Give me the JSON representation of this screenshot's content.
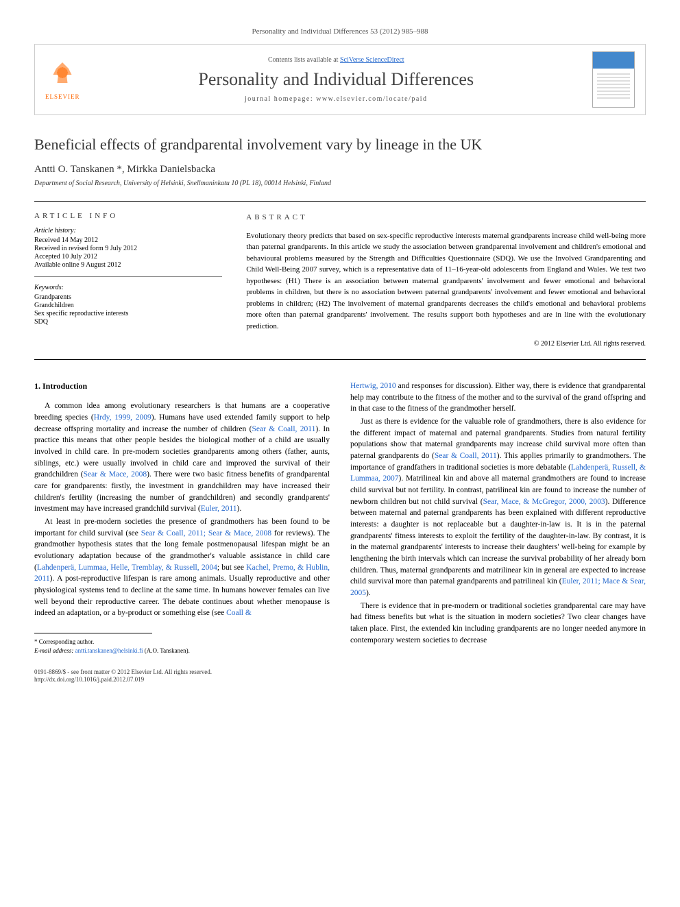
{
  "journal_ref": "Personality and Individual Differences 53 (2012) 985–988",
  "header": {
    "contents_prefix": "Contents lists available at ",
    "contents_link": "SciVerse ScienceDirect",
    "journal_title": "Personality and Individual Differences",
    "homepage_prefix": "journal homepage: ",
    "homepage_url": "www.elsevier.com/locate/paid",
    "publisher_label": "ELSEVIER"
  },
  "article": {
    "title": "Beneficial effects of grandparental involvement vary by lineage in the UK",
    "authors": "Antti O. Tanskanen *, Mirkka Danielsbacka",
    "affiliation": "Department of Social Research, University of Helsinki, Snellmaninkatu 10 (PL 18), 00014 Helsinki, Finland"
  },
  "info": {
    "heading": "ARTICLE INFO",
    "history_label": "Article history:",
    "received": "Received 14 May 2012",
    "revised": "Received in revised form 9 July 2012",
    "accepted": "Accepted 10 July 2012",
    "online": "Available online 9 August 2012",
    "keywords_label": "Keywords:",
    "kw1": "Grandparents",
    "kw2": "Grandchildren",
    "kw3": "Sex specific reproductive interests",
    "kw4": "SDQ"
  },
  "abstract": {
    "heading": "ABSTRACT",
    "text": "Evolutionary theory predicts that based on sex-specific reproductive interests maternal grandparents increase child well-being more than paternal grandparents. In this article we study the association between grandparental involvement and children's emotional and behavioural problems measured by the Strength and Difficulties Questionnaire (SDQ). We use the Involved Grandparenting and Child Well-Being 2007 survey, which is a representative data of 11–16-year-old adolescents from England and Wales. We test two hypotheses: (H1) There is an association between maternal grandparents' involvement and fewer emotional and behavioral problems in children, but there is no association between paternal grandparents' involvement and fewer emotional and behavioral problems in children; (H2) The involvement of maternal grandparents decreases the child's emotional and behavioral problems more often than paternal grandparents' involvement. The results support both hypotheses and are in line with the evolutionary prediction.",
    "copyright": "© 2012 Elsevier Ltd. All rights reserved."
  },
  "body": {
    "section1_heading": "1. Introduction",
    "p1a": "A common idea among evolutionary researchers is that humans are a cooperative breeding species (",
    "p1_cite1": "Hrdy, 1999, 2009",
    "p1b": "). Humans have used extended family support to help decrease offspring mortality and increase the number of children (",
    "p1_cite2": "Sear & Coall, 2011",
    "p1c": "). In practice this means that other people besides the biological mother of a child are usually involved in child care. In pre-modern societies grandparents among others (father, aunts, siblings, etc.) were usually involved in child care and improved the survival of their grandchildren (",
    "p1_cite3": "Sear & Mace, 2008",
    "p1d": "). There were two basic fitness benefits of grandparental care for grandparents: firstly, the investment in grandchildren may have increased their children's fertility (increasing the number of grandchildren) and secondly grandparents' investment may have increased grandchild survival (",
    "p1_cite4": "Euler, 2011",
    "p1e": ").",
    "p2a": "At least in pre-modern societies the presence of grandmothers has been found to be important for child survival (see ",
    "p2_cite1": "Sear & Coall, 2011; Sear & Mace, 2008",
    "p2b": " for reviews). The grandmother hypothesis states that the long female postmenopausal lifespan might be an evolutionary adaptation because of the grandmother's valuable assistance in child care (",
    "p2_cite2": "Lahdenperä, Lummaa, Helle, Tremblay, & Russell, 2004",
    "p2c": "; but see ",
    "p2_cite3": "Kachel, Premo, & Hublin, 2011",
    "p2d": "). A post-reproductive lifespan is rare among animals. Usually reproductive and other physiological systems tend to decline at the same time. In humans however females can live well beyond their reproductive career. The debate continues about whether menopause is indeed an adaptation, or a by-product or something else (see ",
    "p2_cite4": "Coall &",
    "p3_cite_cont": "Hertwig, 2010",
    "p3a": " and responses for discussion). Either way, there is evidence that grandparental help may contribute to the fitness of the mother and to the survival of the grand offspring and in that case to the fitness of the grandmother herself.",
    "p4a": "Just as there is evidence for the valuable role of grandmothers, there is also evidence for the different impact of maternal and paternal grandparents. Studies from natural fertility populations show that maternal grandparents may increase child survival more often than paternal grandparents do (",
    "p4_cite1": "Sear & Coall, 2011",
    "p4b": "). This applies primarily to grandmothers. The importance of grandfathers in traditional societies is more debatable (",
    "p4_cite2": "Lahdenperä, Russell, & Lummaa, 2007",
    "p4c": "). Matrilineal kin and above all maternal grandmothers are found to increase child survival but not fertility. In contrast, patrilineal kin are found to increase the number of newborn children but not child survival (",
    "p4_cite3": "Sear, Mace, & McGregor, 2000, 2003",
    "p4d": "). Difference between maternal and paternal grandparents has been explained with different reproductive interests: a daughter is not replaceable but a daughter-in-law is. It is in the paternal grandparents' fitness interests to exploit the fertility of the daughter-in-law. By contrast, it is in the maternal grandparents' interests to increase their daughters' well-being for example by lengthening the birth intervals which can increase the survival probability of her already born children. Thus, maternal grandparents and matrilinear kin in general are expected to increase child survival more than paternal grandparents and patrilineal kin (",
    "p4_cite4": "Euler, 2011; Mace & Sear, 2005",
    "p4e": ").",
    "p5": "There is evidence that in pre-modern or traditional societies grandparental care may have had fitness benefits but what is the situation in modern societies? Two clear changes have taken place. First, the extended kin including grandparents are no longer needed anymore in contemporary western societies to decrease"
  },
  "footnote": {
    "corresponding": "* Corresponding author.",
    "email_label": "E-mail address: ",
    "email": "antti.tanskanen@helsinki.fi",
    "email_suffix": " (A.O. Tanskanen)."
  },
  "footer": {
    "issn": "0191-8869/$ - see front matter © 2012 Elsevier Ltd. All rights reserved.",
    "doi": "http://dx.doi.org/10.1016/j.paid.2012.07.019"
  },
  "colors": {
    "link": "#2266cc",
    "logo": "#ff6600",
    "text": "#000000",
    "muted": "#555555"
  }
}
